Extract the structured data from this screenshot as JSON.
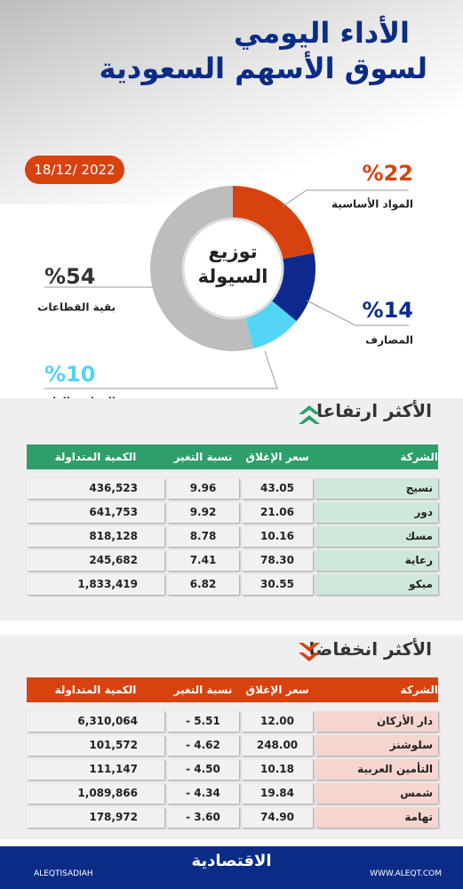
{
  "header": {
    "line1": "الأداء اليومي",
    "line2": "لسوق الأسهم السعودية"
  },
  "date": "18/12/ 2022",
  "chart_data": {
    "type": "pie",
    "title": "توزيع السيولة",
    "categories": [
      "المواد الأساسية",
      "المصارف",
      "المرافق العامة",
      "بقية القطاعات"
    ],
    "values": [
      22,
      14,
      10,
      54
    ],
    "value_labels": [
      "%22",
      "%14",
      "%10",
      "%54"
    ],
    "colors": [
      "#d8420f",
      "#0c2a8e",
      "#52d4f6",
      "#bdbdbd"
    ]
  },
  "gainers": {
    "title": "الأكثر ارتفاعا",
    "columns": [
      "الشركة",
      "سعر الإغلاق",
      "نسبة التغير %",
      "الكمية المتداولة"
    ],
    "rows": [
      [
        "نسيج",
        "43.05",
        "9.96",
        "436,523"
      ],
      [
        "دور",
        "21.06",
        "9.92",
        "641,753"
      ],
      [
        "مسك",
        "10.16",
        "8.78",
        "818,128"
      ],
      [
        "رعاية",
        "78.30",
        "7.41",
        "245,682"
      ],
      [
        "مبكو",
        "30.55",
        "6.82",
        "1,833,419"
      ]
    ]
  },
  "losers": {
    "title": "الأكثر انخفاضا",
    "columns": [
      "الشركة",
      "سعر الإغلاق",
      "نسبة التغير %",
      "الكمية المتداولة"
    ],
    "rows": [
      [
        "دار الأركان",
        "12.00",
        "- 5.51",
        "6,310,064"
      ],
      [
        "سلوشنز",
        "248.00",
        "- 4.62",
        "101,572"
      ],
      [
        "التأمين العربية",
        "10.18",
        "- 4.50",
        "111,147"
      ],
      [
        "شمس",
        "19.84",
        "- 4.34",
        "1,089,866"
      ],
      [
        "تهامة",
        "74.90",
        "- 3.60",
        "178,972"
      ]
    ]
  },
  "footer": {
    "logo": "الاقتصادية",
    "social": "ALEQTISADIAH",
    "site": "WWW.ALEQT.COM"
  }
}
